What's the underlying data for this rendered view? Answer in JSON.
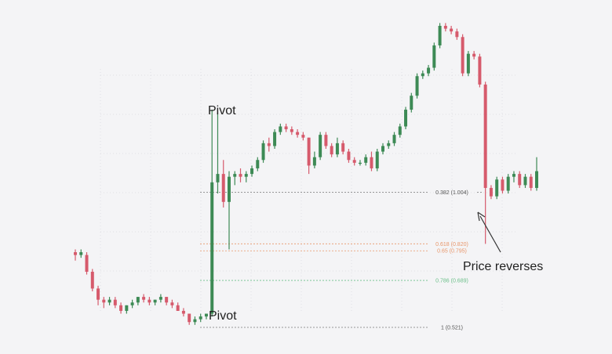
{
  "chart_data": {
    "type": "candlestick",
    "title": "",
    "xlabel": "",
    "ylabel": "",
    "colors": {
      "up": "#3d8a55",
      "down": "#d65a6c",
      "fib_grey": "#555555",
      "fib_orange": "#e8966a",
      "fib_green": "#6cc08a",
      "grid": "#d9d9de"
    },
    "ylim": [
      0.46,
      1.62
    ],
    "fib_levels": [
      {
        "label": "0.382 (1.004)",
        "value": 1.004,
        "color": "fib_grey"
      },
      {
        "label": "0.618 (0.820)",
        "value": 0.82,
        "color": "fib_orange"
      },
      {
        "label": "0.65 (0.795)",
        "value": 0.795,
        "color": "fib_orange"
      },
      {
        "label": "0.786 (0.689)",
        "value": 0.689,
        "color": "fib_green"
      },
      {
        "label": "1 (0.521)",
        "value": 0.521,
        "color": "fib_grey"
      }
    ],
    "annotations": {
      "pivot_high": "Pivot",
      "pivot_low": "Pivot",
      "reversal": "Price reverses"
    },
    "candles": [
      [
        0.79,
        0.8,
        0.76,
        0.78
      ],
      [
        0.78,
        0.8,
        0.77,
        0.79
      ],
      [
        0.78,
        0.79,
        0.71,
        0.72
      ],
      [
        0.72,
        0.73,
        0.65,
        0.66
      ],
      [
        0.66,
        0.67,
        0.6,
        0.62
      ],
      [
        0.62,
        0.63,
        0.59,
        0.61
      ],
      [
        0.61,
        0.63,
        0.6,
        0.62
      ],
      [
        0.62,
        0.63,
        0.59,
        0.6
      ],
      [
        0.6,
        0.61,
        0.57,
        0.58
      ],
      [
        0.58,
        0.6,
        0.57,
        0.6
      ],
      [
        0.6,
        0.62,
        0.59,
        0.61
      ],
      [
        0.61,
        0.63,
        0.6,
        0.63
      ],
      [
        0.63,
        0.64,
        0.61,
        0.62
      ],
      [
        0.62,
        0.63,
        0.6,
        0.61
      ],
      [
        0.61,
        0.62,
        0.6,
        0.62
      ],
      [
        0.62,
        0.64,
        0.61,
        0.63
      ],
      [
        0.63,
        0.63,
        0.6,
        0.61
      ],
      [
        0.61,
        0.62,
        0.59,
        0.6
      ],
      [
        0.6,
        0.61,
        0.58,
        0.58
      ],
      [
        0.58,
        0.59,
        0.56,
        0.57
      ],
      [
        0.57,
        0.57,
        0.53,
        0.54
      ],
      [
        0.54,
        0.56,
        0.53,
        0.55
      ],
      [
        0.55,
        0.57,
        0.54,
        0.56
      ],
      [
        0.56,
        0.57,
        0.55,
        0.57
      ],
      [
        0.57,
        1.3,
        0.56,
        1.04
      ],
      [
        1.04,
        1.29,
        1.0,
        1.07
      ],
      [
        1.07,
        1.12,
        0.95,
        0.97
      ],
      [
        0.97,
        1.08,
        0.8,
        1.06
      ],
      [
        1.06,
        1.08,
        1.03,
        1.07
      ],
      [
        1.07,
        1.09,
        1.04,
        1.06
      ],
      [
        1.06,
        1.08,
        1.04,
        1.07
      ],
      [
        1.07,
        1.1,
        1.06,
        1.09
      ],
      [
        1.09,
        1.13,
        1.08,
        1.12
      ],
      [
        1.12,
        1.19,
        1.11,
        1.18
      ],
      [
        1.18,
        1.2,
        1.15,
        1.17
      ],
      [
        1.17,
        1.23,
        1.16,
        1.22
      ],
      [
        1.22,
        1.25,
        1.21,
        1.24
      ],
      [
        1.24,
        1.25,
        1.22,
        1.23
      ],
      [
        1.23,
        1.24,
        1.21,
        1.22
      ],
      [
        1.22,
        1.23,
        1.2,
        1.21
      ],
      [
        1.21,
        1.22,
        1.19,
        1.2
      ],
      [
        1.2,
        1.2,
        1.07,
        1.1
      ],
      [
        1.1,
        1.15,
        1.09,
        1.13
      ],
      [
        1.13,
        1.22,
        1.12,
        1.21
      ],
      [
        1.21,
        1.22,
        1.16,
        1.17
      ],
      [
        1.17,
        1.18,
        1.13,
        1.14
      ],
      [
        1.14,
        1.2,
        1.13,
        1.18
      ],
      [
        1.18,
        1.19,
        1.14,
        1.15
      ],
      [
        1.15,
        1.16,
        1.11,
        1.12
      ],
      [
        1.12,
        1.13,
        1.1,
        1.11
      ],
      [
        1.11,
        1.12,
        1.1,
        1.11
      ],
      [
        1.11,
        1.14,
        1.1,
        1.13
      ],
      [
        1.13,
        1.15,
        1.08,
        1.09
      ],
      [
        1.09,
        1.16,
        1.08,
        1.15
      ],
      [
        1.15,
        1.18,
        1.14,
        1.17
      ],
      [
        1.17,
        1.19,
        1.16,
        1.18
      ],
      [
        1.18,
        1.22,
        1.17,
        1.21
      ],
      [
        1.21,
        1.25,
        1.2,
        1.24
      ],
      [
        1.24,
        1.31,
        1.23,
        1.3
      ],
      [
        1.3,
        1.36,
        1.29,
        1.35
      ],
      [
        1.35,
        1.43,
        1.34,
        1.42
      ],
      [
        1.42,
        1.44,
        1.41,
        1.43
      ],
      [
        1.43,
        1.46,
        1.42,
        1.45
      ],
      [
        1.45,
        1.54,
        1.44,
        1.53
      ],
      [
        1.53,
        1.61,
        1.52,
        1.6
      ],
      [
        1.6,
        1.61,
        1.58,
        1.59
      ],
      [
        1.59,
        1.6,
        1.57,
        1.58
      ],
      [
        1.58,
        1.59,
        1.55,
        1.56
      ],
      [
        1.56,
        1.57,
        1.42,
        1.43
      ],
      [
        1.43,
        1.51,
        1.42,
        1.5
      ],
      [
        1.5,
        1.51,
        1.48,
        1.49
      ],
      [
        1.49,
        1.5,
        1.38,
        1.39
      ],
      [
        1.39,
        1.4,
        0.82,
        1.02
      ],
      [
        1.02,
        1.03,
        0.98,
        0.99
      ],
      [
        0.99,
        1.06,
        0.98,
        1.05
      ],
      [
        1.05,
        1.06,
        1.0,
        1.01
      ],
      [
        1.01,
        1.07,
        1.0,
        1.06
      ],
      [
        1.06,
        1.08,
        1.04,
        1.07
      ],
      [
        1.07,
        1.08,
        1.02,
        1.03
      ],
      [
        1.03,
        1.07,
        1.02,
        1.06
      ],
      [
        1.06,
        1.07,
        1.01,
        1.02
      ],
      [
        1.02,
        1.13,
        1.01,
        1.08
      ]
    ]
  }
}
